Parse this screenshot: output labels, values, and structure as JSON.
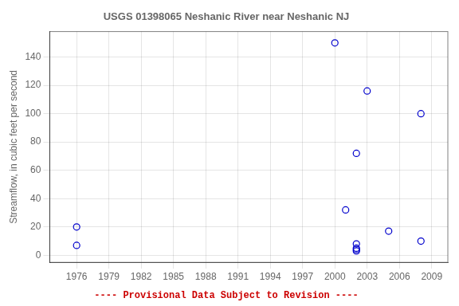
{
  "chart_data": {
    "type": "scatter",
    "title": "USGS 01398065 Neshanic River near Neshanic NJ",
    "ylabel": "Streamflow, in cubic feet per second",
    "x": [
      1976,
      1976,
      2000,
      2001,
      2002,
      2002,
      2002,
      2002,
      2002,
      2003,
      2005,
      2008,
      2008
    ],
    "values": [
      20,
      7,
      150,
      32,
      72,
      8,
      4,
      3,
      5,
      116,
      17,
      100,
      10
    ],
    "color": "#0000cc",
    "marker": "circle",
    "xlim": [
      1973.5,
      2010.5
    ],
    "ylim": [
      -5,
      158
    ],
    "xticks": [
      1976,
      1979,
      1982,
      1985,
      1988,
      1991,
      1994,
      1997,
      2000,
      2003,
      2006,
      2009
    ],
    "yticks": [
      0,
      20,
      40,
      60,
      80,
      100,
      120,
      140
    ],
    "grid": true,
    "annotations": [
      {
        "text": "---- Provisional Data Subject to Revision ----",
        "color": "#cc0000"
      }
    ]
  }
}
